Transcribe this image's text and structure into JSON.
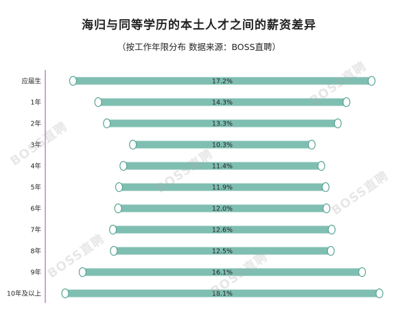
{
  "title": "海归与同等学历的本土人才之间的薪资差异",
  "subtitle": "（按工作年限分布  数据来源：BOSS直聘）",
  "watermark_text": "BOSS直聘",
  "colors": {
    "bar": "#7fbfb2",
    "bar_edge": "#5aa596",
    "axis": "#b889b5",
    "text": "#222222",
    "cap": "#ffffff"
  },
  "chart_data": {
    "type": "bar",
    "orientation": "horizontal",
    "layout": "centered",
    "title": "海归与同等学历的本土人才之间的薪资差异",
    "subtitle": "（按工作年限分布  数据来源：BOSS直聘）",
    "categories": [
      "应届生",
      "1年",
      "2年",
      "3年",
      "4年",
      "5年",
      "6年",
      "7年",
      "8年",
      "9年",
      "10年及以上"
    ],
    "values": [
      17.2,
      14.3,
      13.3,
      10.3,
      11.4,
      11.9,
      12.0,
      12.6,
      12.5,
      16.1,
      18.1
    ],
    "value_labels": [
      "17.2%",
      "14.3%",
      "13.3%",
      "10.3%",
      "11.4%",
      "11.9%",
      "12.0%",
      "12.6%",
      "12.5%",
      "16.1%",
      "18.1%"
    ],
    "unit": "%",
    "legend": "none",
    "grid": false
  }
}
